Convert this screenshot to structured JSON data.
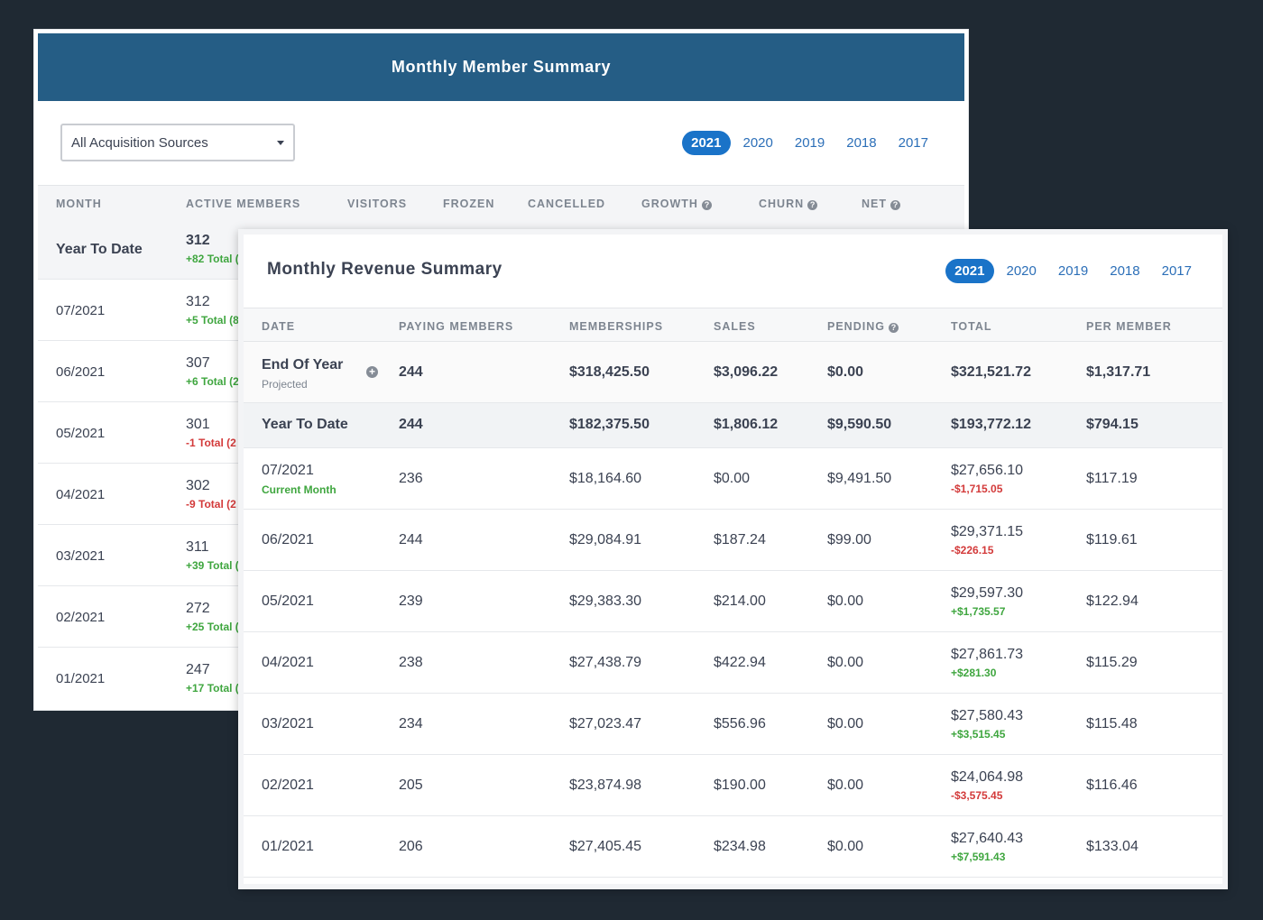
{
  "member_summary": {
    "title": "Monthly Member Summary",
    "source_select": {
      "value": "All Acquisition Sources"
    },
    "years": [
      "2021",
      "2020",
      "2019",
      "2018",
      "2017"
    ],
    "active_year": "2021",
    "columns": {
      "month": "MONTH",
      "active_members": "ACTIVE MEMBERS",
      "visitors": "VISITORS",
      "frozen": "FROZEN",
      "cancelled": "CANCELLED",
      "growth": "GROWTH",
      "churn": "CHURN",
      "net": "NET"
    },
    "rows": [
      {
        "month": "Year To Date",
        "active": "312",
        "delta": "+82 Total (",
        "trend": "pos"
      },
      {
        "month": "07/2021",
        "active": "312",
        "delta": "+5 Total (8",
        "trend": "pos"
      },
      {
        "month": "06/2021",
        "active": "307",
        "delta": "+6 Total (2",
        "trend": "pos"
      },
      {
        "month": "05/2021",
        "active": "301",
        "delta": "-1 Total (2",
        "trend": "neg"
      },
      {
        "month": "04/2021",
        "active": "302",
        "delta": "-9 Total (2",
        "trend": "neg"
      },
      {
        "month": "03/2021",
        "active": "311",
        "delta": "+39 Total (",
        "trend": "pos"
      },
      {
        "month": "02/2021",
        "active": "272",
        "delta": "+25 Total (",
        "trend": "pos"
      },
      {
        "month": "01/2021",
        "active": "247",
        "delta": "+17 Total (",
        "trend": "pos"
      }
    ]
  },
  "revenue_summary": {
    "title": "Monthly Revenue Summary",
    "years": [
      "2021",
      "2020",
      "2019",
      "2018",
      "2017"
    ],
    "active_year": "2021",
    "columns": {
      "date": "DATE",
      "paying_members": "PAYING MEMBERS",
      "memberships": "MEMBERSHIPS",
      "sales": "SALES",
      "pending": "PENDING",
      "total": "TOTAL",
      "per_member": "PER MEMBER"
    },
    "end_of_year": {
      "label": "End Of Year",
      "sub": "Projected",
      "paying": "244",
      "memberships": "$318,425.50",
      "sales": "$3,096.22",
      "pending": "$0.00",
      "total": "$321,521.72",
      "per_member": "$1,317.71"
    },
    "year_to_date": {
      "label": "Year To Date",
      "paying": "244",
      "memberships": "$182,375.50",
      "sales": "$1,806.12",
      "pending": "$9,590.50",
      "total": "$193,772.12",
      "per_member": "$794.15"
    },
    "rows": [
      {
        "date": "07/2021",
        "sub": "Current Month",
        "paying": "236",
        "memberships": "$18,164.60",
        "sales": "$0.00",
        "pending": "$9,491.50",
        "total": "$27,656.10",
        "total_delta": "-$1,715.05",
        "trend": "neg",
        "per_member": "$117.19"
      },
      {
        "date": "06/2021",
        "sub": "",
        "paying": "244",
        "memberships": "$29,084.91",
        "sales": "$187.24",
        "pending": "$99.00",
        "total": "$29,371.15",
        "total_delta": "-$226.15",
        "trend": "neg",
        "per_member": "$119.61"
      },
      {
        "date": "05/2021",
        "sub": "",
        "paying": "239",
        "memberships": "$29,383.30",
        "sales": "$214.00",
        "pending": "$0.00",
        "total": "$29,597.30",
        "total_delta": "+$1,735.57",
        "trend": "pos",
        "per_member": "$122.94"
      },
      {
        "date": "04/2021",
        "sub": "",
        "paying": "238",
        "memberships": "$27,438.79",
        "sales": "$422.94",
        "pending": "$0.00",
        "total": "$27,861.73",
        "total_delta": "+$281.30",
        "trend": "pos",
        "per_member": "$115.29"
      },
      {
        "date": "03/2021",
        "sub": "",
        "paying": "234",
        "memberships": "$27,023.47",
        "sales": "$556.96",
        "pending": "$0.00",
        "total": "$27,580.43",
        "total_delta": "+$3,515.45",
        "trend": "pos",
        "per_member": "$115.48"
      },
      {
        "date": "02/2021",
        "sub": "",
        "paying": "205",
        "memberships": "$23,874.98",
        "sales": "$190.00",
        "pending": "$0.00",
        "total": "$24,064.98",
        "total_delta": "-$3,575.45",
        "trend": "neg",
        "per_member": "$116.46"
      },
      {
        "date": "01/2021",
        "sub": "",
        "paying": "206",
        "memberships": "$27,405.45",
        "sales": "$234.98",
        "pending": "$0.00",
        "total": "$27,640.43",
        "total_delta": "+$7,591.43",
        "trend": "pos",
        "per_member": "$133.04"
      }
    ]
  },
  "icons": {
    "help": "question-circle-icon",
    "expand": "plus-circle-icon",
    "dropdown": "caret-down-icon"
  }
}
